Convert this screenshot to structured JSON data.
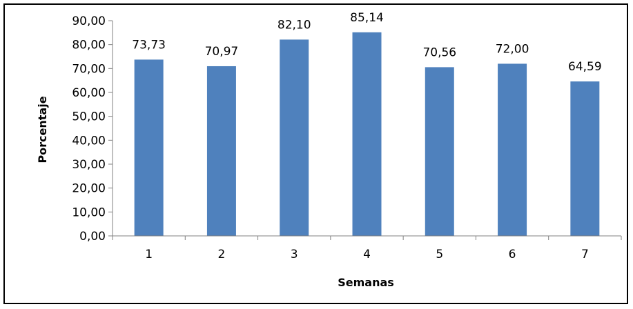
{
  "chart_data": {
    "type": "bar",
    "title": "",
    "xlabel": "Semanas",
    "ylabel": "Porcentaje",
    "categories": [
      "1",
      "2",
      "3",
      "4",
      "5",
      "6",
      "7"
    ],
    "values": [
      73.73,
      70.97,
      82.1,
      85.14,
      70.56,
      72.0,
      64.59
    ],
    "value_labels": [
      "73,73",
      "70,97",
      "82,10",
      "85,14",
      "70,56",
      "72,00",
      "64,59"
    ],
    "ylim": [
      0,
      90
    ],
    "y_ticks": [
      0,
      10,
      20,
      30,
      40,
      50,
      60,
      70,
      80,
      90
    ],
    "y_tick_labels": [
      "0,00",
      "10,00",
      "20,00",
      "30,00",
      "40,00",
      "50,00",
      "60,00",
      "70,00",
      "80,00",
      "90,00"
    ],
    "grid": false,
    "legend": "none",
    "bar_color": "#4F81BD"
  }
}
